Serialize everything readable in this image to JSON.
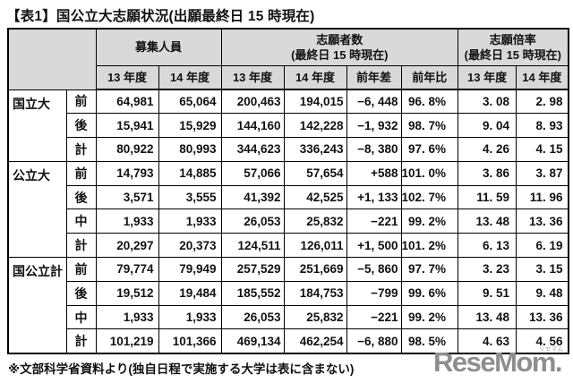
{
  "page": {
    "title": "【表1】国公立大志願状況(出願最終日 15 時現在)",
    "footnote": "※文部科学省資料より(独自日程で実施する大学は表に含まない)",
    "watermark": "ReseMom.",
    "watermark_small": "リセマム"
  },
  "colors": {
    "header_bg": "#d9d9d9",
    "border": "#000000",
    "text": "#111111",
    "watermark": "#8e8e8e"
  },
  "chart_data": {
    "type": "table",
    "title": "【表1】国公立大志願状況(出願最終日 15 時現在)",
    "column_groups": [
      {
        "title": "募集人員",
        "subtitle": ""
      },
      {
        "title": "志願者数",
        "subtitle": "(最終日 15 時現在)"
      },
      {
        "title": "志願倍率",
        "subtitle": "(最終日 15 時現在)"
      }
    ],
    "sub_headers": [
      "13 年度",
      "14 年度",
      "13 年度",
      "14 年度",
      "前年差",
      "前年比",
      "13 年度",
      "14 年度"
    ],
    "row_groups": [
      {
        "category": "国立大",
        "rows": [
          {
            "label": "前",
            "values": [
              "64,981",
              "65,064",
              "200,463",
              "194,015",
              "−6, 448",
              "96. 8%",
              "3. 08",
              "2. 98"
            ]
          },
          {
            "label": "後",
            "values": [
              "15,941",
              "15,929",
              "144,160",
              "142,228",
              "−1, 932",
              "98. 7%",
              "9. 04",
              "8. 93"
            ]
          },
          {
            "label": "計",
            "values": [
              "80,922",
              "80,993",
              "344,623",
              "336,243",
              "−8, 380",
              "97. 6%",
              "4. 26",
              "4. 15"
            ]
          }
        ]
      },
      {
        "category": "公立大",
        "rows": [
          {
            "label": "前",
            "values": [
              "14,793",
              "14,885",
              "57,066",
              "57,654",
              "+588",
              "101. 0%",
              "3. 86",
              "3. 87"
            ]
          },
          {
            "label": "後",
            "values": [
              "3,571",
              "3,555",
              "41,392",
              "42,525",
              "+1, 133",
              "102. 7%",
              "11. 59",
              "11. 96"
            ]
          },
          {
            "label": "中",
            "values": [
              "1,933",
              "1,933",
              "26,053",
              "25,832",
              "−221",
              "99. 2%",
              "13. 48",
              "13. 36"
            ]
          },
          {
            "label": "計",
            "values": [
              "20,297",
              "20,373",
              "124,511",
              "126,011",
              "+1, 500",
              "101. 2%",
              "6. 13",
              "6. 19"
            ]
          }
        ]
      },
      {
        "category": "国公立計",
        "rows": [
          {
            "label": "前",
            "values": [
              "79,774",
              "79,949",
              "257,529",
              "251,669",
              "−5, 860",
              "97. 7%",
              "3. 23",
              "3. 15"
            ]
          },
          {
            "label": "後",
            "values": [
              "19,512",
              "19,484",
              "185,552",
              "184,753",
              "−799",
              "99. 6%",
              "9. 51",
              "9. 48"
            ]
          },
          {
            "label": "中",
            "values": [
              "1,933",
              "1,933",
              "26,053",
              "25,832",
              "−221",
              "99. 2%",
              "13. 48",
              "13. 36"
            ]
          },
          {
            "label": "計",
            "values": [
              "101,219",
              "101,366",
              "469,134",
              "462,254",
              "−6, 880",
              "98. 5%",
              "4. 63",
              "4. 56"
            ]
          }
        ]
      }
    ]
  }
}
